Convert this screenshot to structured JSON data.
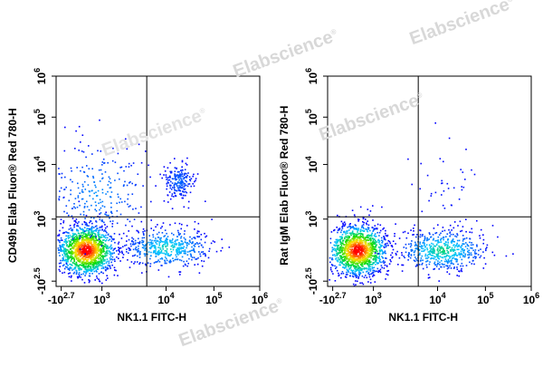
{
  "watermark": {
    "text": "Elabscience",
    "mark": "®"
  },
  "chart_data": [
    {
      "type": "scatter",
      "subtype": "flow-cytometry-density-dot-plot",
      "title": "",
      "xlabel": "NK1.1 FITC-H",
      "ylabel": "CD49b Elab Fluor® Red 780-H",
      "x_scale": "biexponential",
      "y_scale": "biexponential",
      "xlim": [
        -500,
        1000000
      ],
      "ylim": [
        -316,
        1000000
      ],
      "x_ticks": [
        {
          "base": "-10",
          "exp": "2.7",
          "value": -501
        },
        {
          "base": "10",
          "exp": "3",
          "value": 1000
        },
        {
          "base": "10",
          "exp": "4",
          "value": 10000
        },
        {
          "base": "10",
          "exp": "5",
          "value": 100000
        },
        {
          "base": "10",
          "exp": "6",
          "value": 1000000
        }
      ],
      "y_ticks": [
        {
          "base": "-10",
          "exp": "2.5",
          "value": -316
        },
        {
          "base": "10",
          "exp": "3",
          "value": 1000
        },
        {
          "base": "10",
          "exp": "4",
          "value": 10000
        },
        {
          "base": "10",
          "exp": "5",
          "value": 100000
        },
        {
          "base": "10",
          "exp": "6",
          "value": 1000000
        }
      ],
      "quadrant_gate": {
        "x": 5000,
        "y": 1100
      },
      "populations": [
        {
          "label": "NK1.1- CD49b- main",
          "center": [
            400,
            350
          ],
          "relative_density": 1.0
        },
        {
          "label": "NK1.1+ CD49b-",
          "center": [
            10000,
            400
          ],
          "relative_density": 0.35
        },
        {
          "label": "NK1.1- CD49b+ scattered",
          "center": [
            800,
            3000
          ],
          "relative_density": 0.2
        },
        {
          "label": "NK1.1+ CD49b+ (NK cells)",
          "center": [
            18000,
            5000
          ],
          "relative_density": 0.15
        }
      ]
    },
    {
      "type": "scatter",
      "subtype": "flow-cytometry-density-dot-plot",
      "title": "",
      "xlabel": "NK1.1 FITC-H",
      "ylabel": "Rat IgM Elab Fluor® Red 780-H",
      "x_scale": "biexponential",
      "y_scale": "biexponential",
      "xlim": [
        -500,
        1000000
      ],
      "ylim": [
        -316,
        1000000
      ],
      "x_ticks": [
        {
          "base": "-10",
          "exp": "2.7",
          "value": -501
        },
        {
          "base": "10",
          "exp": "3",
          "value": 1000
        },
        {
          "base": "10",
          "exp": "4",
          "value": 10000
        },
        {
          "base": "10",
          "exp": "5",
          "value": 100000
        },
        {
          "base": "10",
          "exp": "6",
          "value": 1000000
        }
      ],
      "y_ticks": [
        {
          "base": "-10",
          "exp": "2.5",
          "value": -316
        },
        {
          "base": "10",
          "exp": "3",
          "value": 1000
        },
        {
          "base": "10",
          "exp": "4",
          "value": 10000
        },
        {
          "base": "10",
          "exp": "5",
          "value": 100000
        },
        {
          "base": "10",
          "exp": "6",
          "value": 1000000
        }
      ],
      "quadrant_gate": {
        "x": 5000,
        "y": 1100
      },
      "populations": [
        {
          "label": "NK1.1- negative main",
          "center": [
            400,
            350
          ],
          "relative_density": 1.0
        },
        {
          "label": "NK1.1+ negative",
          "center": [
            12000,
            350
          ],
          "relative_density": 0.4
        },
        {
          "label": "sparse upper events",
          "center": [
            20000,
            3000
          ],
          "relative_density": 0.03
        }
      ]
    }
  ]
}
